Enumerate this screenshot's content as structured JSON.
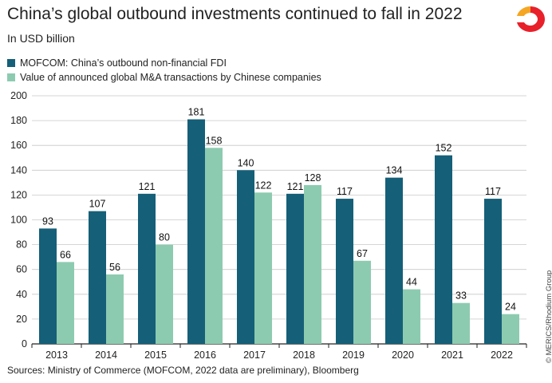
{
  "chart_data": {
    "type": "bar",
    "title": "China’s global outbound investments continued to fall in 2022",
    "subtitle": "In USD billion",
    "categories": [
      "2013",
      "2014",
      "2015",
      "2016",
      "2017",
      "2018",
      "2019",
      "2020",
      "2021",
      "2022"
    ],
    "series": [
      {
        "name": "MOFCOM: China’s outbound non-financial FDI",
        "color": "#155f78",
        "values": [
          93,
          107,
          121,
          181,
          140,
          121,
          117,
          134,
          152,
          117
        ]
      },
      {
        "name": "Value of announced global M&A transactions by Chinese companies",
        "color": "#8dcbb0",
        "values": [
          66,
          56,
          80,
          158,
          122,
          128,
          67,
          44,
          33,
          24
        ]
      }
    ],
    "ylim": [
      0,
      200
    ],
    "yticks": [
      0,
      20,
      40,
      60,
      80,
      100,
      120,
      140,
      160,
      180,
      200
    ],
    "grid": true,
    "legend_position": "top-left"
  },
  "source": "Sources: Ministry of Commerce (MOFCOM, 2022 data are preliminary), Bloomberg",
  "copyright": "© MERICS/Rhodium Group",
  "logo": {
    "icon": "merics-logo-icon",
    "primary_color": "#e8202a",
    "secondary_color": "#f5a623"
  }
}
